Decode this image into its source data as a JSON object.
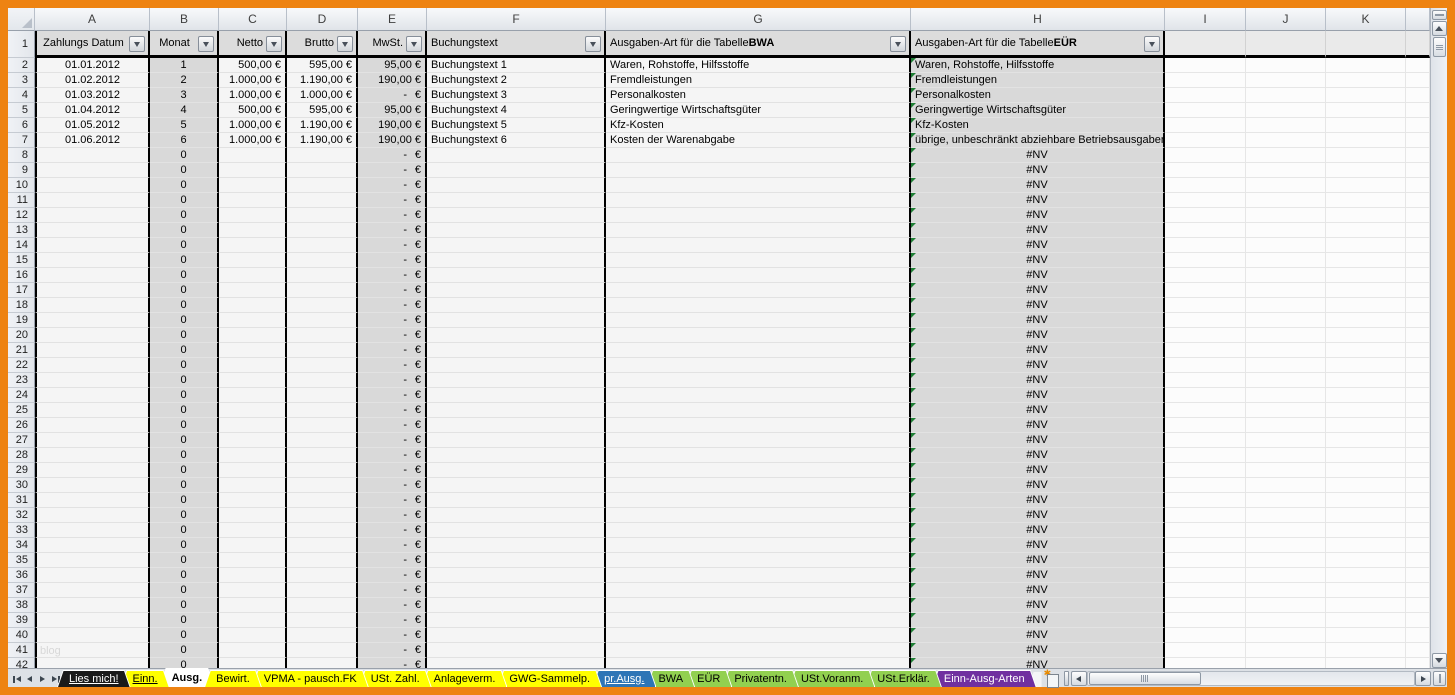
{
  "app": {
    "type": "spreadsheet",
    "frame_color": "#ee8312"
  },
  "grid": {
    "column_letters": [
      "A",
      "B",
      "C",
      "D",
      "E",
      "F",
      "G",
      "H",
      "I",
      "J",
      "K"
    ],
    "first_row": 1,
    "last_visible_row": 42
  },
  "filter_header": {
    "row": 1,
    "zahlungs_datum": "Zahlungs Datum",
    "monat": "Monat",
    "netto": "Netto",
    "brutto": "Brutto",
    "mwst": "MwSt.",
    "buchungstext": "Buchungstext",
    "bwa_prefix": "Ausgaben-Art für die Tabelle ",
    "bwa_bold": "BWA",
    "eur_prefix": "Ausgaben-Art für die Tabelle ",
    "eur_bold": "EÜR"
  },
  "entries": [
    {
      "row": 2,
      "date": "01.01.2012",
      "monat": "1",
      "netto": "500,00 €",
      "brutto": "595,00 €",
      "mwst": "95,00 €",
      "buchungstext": "Buchungstext 1",
      "bwa": "Waren, Rohstoffe, Hilfsstoffe",
      "eur": "Waren, Rohstoffe, Hilfsstoffe",
      "eur_error": true
    },
    {
      "row": 3,
      "date": "01.02.2012",
      "monat": "2",
      "netto": "1.000,00 €",
      "brutto": "1.190,00 €",
      "mwst": "190,00 €",
      "buchungstext": "Buchungstext 2",
      "bwa": "Fremdleistungen",
      "eur": "Fremdleistungen",
      "eur_error": true
    },
    {
      "row": 4,
      "date": "01.03.2012",
      "monat": "3",
      "netto": "1.000,00 €",
      "brutto": "1.000,00 €",
      "mwst_dash": "-",
      "mwst_euro": "€",
      "buchungstext": "Buchungstext 3",
      "bwa": "Personalkosten",
      "eur": "Personalkosten",
      "eur_error": true
    },
    {
      "row": 5,
      "date": "01.04.2012",
      "monat": "4",
      "netto": "500,00 €",
      "brutto": "595,00 €",
      "mwst": "95,00 €",
      "buchungstext": "Buchungstext 4",
      "bwa": "Geringwertige Wirtschaftsgüter",
      "eur": "Geringwertige Wirtschaftsgüter",
      "eur_error": true
    },
    {
      "row": 6,
      "date": "01.05.2012",
      "monat": "5",
      "netto": "1.000,00 €",
      "brutto": "1.190,00 €",
      "mwst": "190,00 €",
      "buchungstext": "Buchungstext 5",
      "bwa": "Kfz-Kosten",
      "eur": "Kfz-Kosten",
      "eur_error": true
    },
    {
      "row": 7,
      "date": "01.06.2012",
      "monat": "6",
      "netto": "1.000,00 €",
      "brutto": "1.190,00 €",
      "mwst": "190,00 €",
      "buchungstext": "Buchungstext 6",
      "bwa": "Kosten der Warenabgabe",
      "eur": "übrige, unbeschränkt abziehbare Betriebsausgaben",
      "eur_error": true
    }
  ],
  "empty_row_defaults": {
    "from_row": 8,
    "to_row": 42,
    "monat": "0",
    "mwst_dash": "-",
    "mwst_euro": "€",
    "eur": "#NV",
    "eur_error": true
  },
  "watermark": "blog",
  "sheet_tabs": [
    {
      "label": "Lies mich!",
      "bg": "#1a1a1a",
      "fg": "#ffffff",
      "underline": true,
      "active": false
    },
    {
      "label": "Einn.",
      "bg": "#ffff00",
      "fg": "#000000",
      "underline": true,
      "active": false
    },
    {
      "label": "Ausg.",
      "bg": "#ffffff",
      "fg": "#000000",
      "underline": false,
      "active": true
    },
    {
      "label": "Bewirt.",
      "bg": "#ffff00",
      "fg": "#000000",
      "underline": false,
      "active": false
    },
    {
      "label": "VPMA - pausch.FK",
      "bg": "#ffff00",
      "fg": "#000000",
      "underline": false,
      "active": false
    },
    {
      "label": "USt. Zahl.",
      "bg": "#ffff00",
      "fg": "#000000",
      "underline": false,
      "active": false
    },
    {
      "label": "Anlageverm.",
      "bg": "#ffff00",
      "fg": "#000000",
      "underline": false,
      "active": false
    },
    {
      "label": "GWG-Sammelp.",
      "bg": "#ffff00",
      "fg": "#000000",
      "underline": false,
      "active": false
    },
    {
      "label": "pr.Ausg.",
      "bg": "#2e75b6",
      "fg": "#ffffff",
      "underline": true,
      "active": false
    },
    {
      "label": "BWA",
      "bg": "#92d050",
      "fg": "#000000",
      "underline": false,
      "active": false
    },
    {
      "label": "EÜR",
      "bg": "#92d050",
      "fg": "#000000",
      "underline": false,
      "active": false
    },
    {
      "label": "Privatentn.",
      "bg": "#92d050",
      "fg": "#000000",
      "underline": false,
      "active": false
    },
    {
      "label": "USt.Voranm.",
      "bg": "#92d050",
      "fg": "#000000",
      "underline": false,
      "active": false
    },
    {
      "label": "USt.Erklär.",
      "bg": "#92d050",
      "fg": "#000000",
      "underline": false,
      "active": false
    },
    {
      "label": "Einn-Ausg-Arten",
      "bg": "#7030a0",
      "fg": "#ffffff",
      "underline": false,
      "active": false
    }
  ],
  "colors": {
    "shaded_column": "#d9d9d9",
    "table_border": "#000000",
    "error_indicator": "#1e7e34",
    "header_fill": "#dcdcdc"
  }
}
